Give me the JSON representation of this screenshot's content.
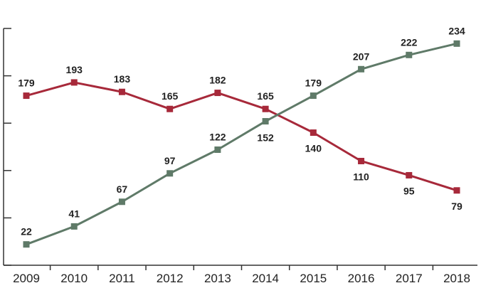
{
  "chart_data": {
    "type": "line",
    "title": "",
    "xlabel": "",
    "ylabel": "",
    "x": [
      "2009",
      "2010",
      "2011",
      "2012",
      "2013",
      "2014",
      "2015",
      "2016",
      "2017",
      "2018"
    ],
    "ylim": [
      0,
      250
    ],
    "grid": false,
    "series": [
      {
        "color": "#a7293a",
        "values": [
          179,
          193,
          183,
          165,
          182,
          165,
          140,
          110,
          95,
          79
        ],
        "labels": [
          "179",
          "193",
          "183",
          "165",
          "182",
          "165",
          "140",
          "110",
          "95",
          "79"
        ]
      },
      {
        "color": "#5f7a68",
        "values": [
          22,
          41,
          67,
          97,
          122,
          152,
          179,
          207,
          222,
          234
        ],
        "labels": [
          "22",
          "41",
          "67",
          "97",
          "122",
          "152",
          "179",
          "207",
          "222",
          "234"
        ]
      }
    ]
  }
}
